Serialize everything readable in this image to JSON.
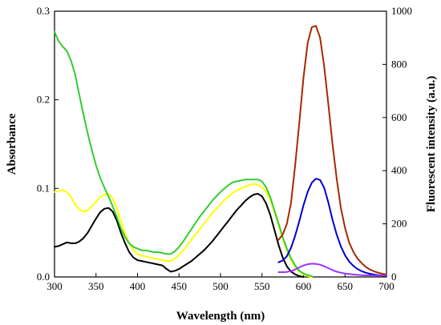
{
  "chart_data": {
    "type": "line",
    "xlabel": "Wavelength (nm)",
    "ylabel_left": "Absorbance",
    "ylabel_right": "Fluorescent intensity (a.u.)",
    "xlim": [
      300,
      700
    ],
    "ylim_left": [
      0,
      0.3
    ],
    "ylim_right": [
      0,
      1000
    ],
    "xticks": [
      "300",
      "350",
      "400",
      "450",
      "500",
      "550",
      "600",
      "650",
      "700"
    ],
    "yticks_left": [
      "0.0",
      "0.1",
      "0.2",
      "0.3"
    ],
    "yticks_right": [
      "0",
      "200",
      "400",
      "600",
      "800",
      "1000"
    ],
    "grid": false,
    "series": [
      {
        "axis": "left",
        "color": "#000000",
        "x": [
          300,
          305,
          310,
          315,
          320,
          325,
          330,
          335,
          340,
          345,
          350,
          355,
          360,
          365,
          370,
          375,
          380,
          385,
          390,
          395,
          400,
          405,
          410,
          415,
          420,
          425,
          430,
          435,
          440,
          445,
          450,
          455,
          460,
          465,
          470,
          475,
          480,
          485,
          490,
          495,
          500,
          505,
          510,
          515,
          520,
          525,
          530,
          535,
          540,
          545,
          550,
          555,
          560,
          565,
          570,
          575,
          580,
          585,
          590,
          595,
          600
        ],
        "y": [
          0.034,
          0.035,
          0.037,
          0.039,
          0.038,
          0.038,
          0.04,
          0.044,
          0.05,
          0.058,
          0.066,
          0.073,
          0.077,
          0.078,
          0.074,
          0.064,
          0.05,
          0.038,
          0.028,
          0.022,
          0.019,
          0.018,
          0.017,
          0.016,
          0.015,
          0.014,
          0.013,
          0.009,
          0.006,
          0.007,
          0.009,
          0.012,
          0.015,
          0.018,
          0.022,
          0.026,
          0.03,
          0.035,
          0.04,
          0.046,
          0.052,
          0.058,
          0.064,
          0.07,
          0.076,
          0.081,
          0.086,
          0.09,
          0.093,
          0.094,
          0.091,
          0.083,
          0.07,
          0.053,
          0.036,
          0.022,
          0.012,
          0.006,
          0.003,
          0.001,
          0.0
        ]
      },
      {
        "axis": "left",
        "color": "#ffff00",
        "x": [
          300,
          305,
          310,
          315,
          320,
          325,
          330,
          335,
          340,
          345,
          350,
          355,
          360,
          365,
          370,
          375,
          380,
          385,
          390,
          395,
          400,
          405,
          410,
          415,
          420,
          425,
          430,
          435,
          440,
          445,
          450,
          455,
          460,
          465,
          470,
          475,
          480,
          485,
          490,
          495,
          500,
          505,
          510,
          515,
          520,
          525,
          530,
          535,
          540,
          545,
          550,
          555,
          560,
          565,
          570,
          575,
          580,
          585,
          590,
          595,
          600,
          605,
          610
        ],
        "y": [
          0.096,
          0.097,
          0.098,
          0.096,
          0.09,
          0.082,
          0.076,
          0.074,
          0.075,
          0.08,
          0.085,
          0.09,
          0.093,
          0.094,
          0.089,
          0.078,
          0.063,
          0.049,
          0.038,
          0.03,
          0.026,
          0.024,
          0.023,
          0.022,
          0.021,
          0.02,
          0.019,
          0.018,
          0.018,
          0.021,
          0.025,
          0.03,
          0.036,
          0.042,
          0.048,
          0.054,
          0.06,
          0.066,
          0.072,
          0.077,
          0.082,
          0.087,
          0.091,
          0.095,
          0.098,
          0.1,
          0.102,
          0.104,
          0.105,
          0.104,
          0.101,
          0.096,
          0.087,
          0.073,
          0.058,
          0.043,
          0.03,
          0.019,
          0.011,
          0.006,
          0.003,
          0.001,
          0.0
        ]
      },
      {
        "axis": "left",
        "color": "#33cc33",
        "x": [
          300,
          305,
          310,
          315,
          320,
          325,
          330,
          335,
          340,
          345,
          350,
          355,
          360,
          365,
          370,
          375,
          380,
          385,
          390,
          395,
          400,
          405,
          410,
          415,
          420,
          425,
          430,
          435,
          440,
          445,
          450,
          455,
          460,
          465,
          470,
          475,
          480,
          485,
          490,
          495,
          500,
          505,
          510,
          515,
          520,
          525,
          530,
          535,
          540,
          545,
          550,
          555,
          560,
          565,
          570,
          575,
          580,
          585,
          590,
          595,
          600,
          605,
          610
        ],
        "y": [
          0.277,
          0.266,
          0.26,
          0.255,
          0.244,
          0.228,
          0.205,
          0.183,
          0.162,
          0.143,
          0.126,
          0.112,
          0.101,
          0.091,
          0.08,
          0.068,
          0.055,
          0.045,
          0.038,
          0.034,
          0.032,
          0.03,
          0.03,
          0.029,
          0.028,
          0.028,
          0.027,
          0.026,
          0.026,
          0.029,
          0.034,
          0.04,
          0.047,
          0.054,
          0.061,
          0.068,
          0.074,
          0.08,
          0.086,
          0.091,
          0.096,
          0.1,
          0.104,
          0.107,
          0.108,
          0.109,
          0.11,
          0.11,
          0.11,
          0.11,
          0.108,
          0.101,
          0.09,
          0.075,
          0.06,
          0.045,
          0.032,
          0.021,
          0.013,
          0.007,
          0.004,
          0.002,
          0.001
        ]
      },
      {
        "axis": "right",
        "color": "#0000cc",
        "x": [
          570,
          575,
          580,
          585,
          590,
          595,
          600,
          605,
          610,
          615,
          620,
          625,
          630,
          635,
          640,
          645,
          650,
          655,
          660,
          665,
          670,
          675,
          680,
          685,
          690,
          695,
          700
        ],
        "y": [
          55,
          62,
          78,
          110,
          155,
          210,
          270,
          320,
          355,
          370,
          365,
          335,
          280,
          215,
          160,
          115,
          82,
          58,
          42,
          30,
          22,
          16,
          12,
          9,
          7,
          5,
          4
        ]
      },
      {
        "axis": "right",
        "color": "#a52a00",
        "x": [
          570,
          575,
          580,
          585,
          590,
          595,
          600,
          605,
          610,
          615,
          620,
          625,
          630,
          635,
          640,
          645,
          650,
          655,
          660,
          665,
          670,
          675,
          680,
          685,
          690,
          695,
          700
        ],
        "y": [
          140,
          160,
          200,
          280,
          420,
          580,
          750,
          880,
          940,
          945,
          900,
          790,
          650,
          500,
          370,
          260,
          185,
          130,
          95,
          70,
          52,
          38,
          28,
          21,
          16,
          12,
          9
        ]
      },
      {
        "axis": "right",
        "color": "#9933ff",
        "x": [
          570,
          575,
          580,
          585,
          590,
          595,
          600,
          605,
          610,
          615,
          620,
          625,
          630,
          635,
          640,
          645,
          650,
          655,
          660,
          665,
          670,
          675,
          680,
          685,
          690,
          695,
          700
        ],
        "y": [
          18,
          18,
          19,
          22,
          28,
          36,
          43,
          48,
          50,
          49,
          46,
          40,
          33,
          26,
          20,
          16,
          13,
          11,
          9,
          8,
          7,
          6,
          6,
          5,
          5,
          5,
          5
        ]
      }
    ]
  }
}
